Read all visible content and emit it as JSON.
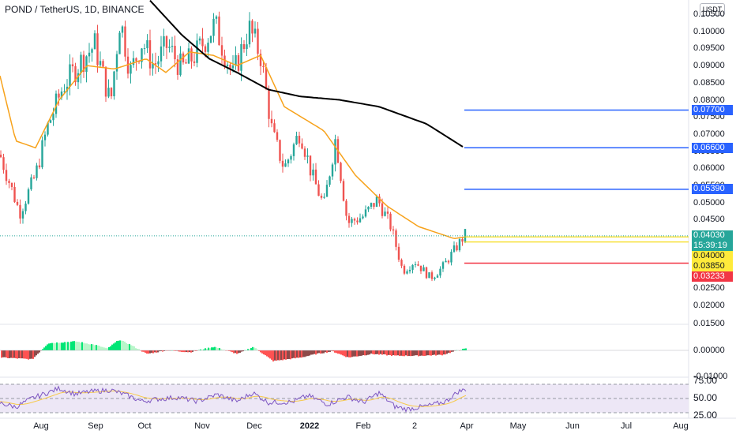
{
  "header": {
    "symbol_line": "POND / TetherUS, 1D, BINANCE"
  },
  "currency_badge": "USDT",
  "price_axis": {
    "ticks": [
      "0.10500",
      "0.10000",
      "0.09500",
      "0.09000",
      "0.08500",
      "0.08000",
      "0.07500",
      "0.07000",
      "0.06500",
      "0.06000",
      "0.05500",
      "0.05000",
      "0.04500",
      "0.02500",
      "0.02000"
    ],
    "tick_values": [
      0.105,
      0.1,
      0.095,
      0.09,
      0.085,
      0.08,
      0.075,
      0.07,
      0.065,
      0.06,
      0.055,
      0.05,
      0.045,
      0.025,
      0.02
    ]
  },
  "price_tags": {
    "level_1": {
      "label": "0.07700",
      "value": 0.077,
      "color": "#2962ff"
    },
    "level_2": {
      "label": "0.06600",
      "value": 0.066,
      "color": "#2962ff"
    },
    "level_3": {
      "label": "0.05390",
      "value": 0.0539,
      "color": "#2962ff"
    },
    "last_price": {
      "label": "0.04030",
      "value": 0.0403,
      "color": "#26a69a"
    },
    "countdown": {
      "label": "15:39:19"
    },
    "yellow_1": {
      "label": "0.04000",
      "value": 0.04,
      "color": "#ffeb3b"
    },
    "yellow_2": {
      "label": "0.03850",
      "value": 0.0385,
      "color": "#ffeb3b"
    },
    "stop": {
      "label": "0.03233",
      "value": 0.03233,
      "color": "#f23645"
    }
  },
  "oscillator_axis": {
    "ticks": [
      "0.01500",
      "0.00000",
      "-0.01000"
    ]
  },
  "rsi_axis": {
    "ticks": [
      "75.00",
      "50.00",
      "25.00"
    ]
  },
  "time_axis": {
    "labels": [
      {
        "text": "Aug",
        "bold": false
      },
      {
        "text": "Sep",
        "bold": false
      },
      {
        "text": "Oct",
        "bold": false
      },
      {
        "text": "Nov",
        "bold": false
      },
      {
        "text": "Dec",
        "bold": false
      },
      {
        "text": "2022",
        "bold": true
      },
      {
        "text": "Feb",
        "bold": false
      },
      {
        "text": "2",
        "bold": false
      },
      {
        "text": "Apr",
        "bold": false
      },
      {
        "text": "May",
        "bold": false
      },
      {
        "text": "Jun",
        "bold": false
      },
      {
        "text": "Jul",
        "bold": false
      },
      {
        "text": "Aug",
        "bold": false
      }
    ]
  },
  "colors": {
    "up": "#26a69a",
    "down": "#ef5350",
    "ma_fast": "#f7a21b",
    "ma_slow": "#000000",
    "rsi": "#7e57c2",
    "rsi_band": "#ede7f6",
    "osc_up": "#00e676",
    "osc_down": "#ff5252"
  },
  "chart_data": {
    "type": "candlestick",
    "panels": [
      "price",
      "oscillator",
      "rsi"
    ],
    "series": [
      {
        "name": "POND / TetherUS",
        "kind": "candles"
      },
      {
        "name": "",
        "kind": "line",
        "note_color": "#f7a21b"
      },
      {
        "name": "",
        "kind": "line",
        "note_color": "#000000"
      }
    ],
    "ylim_price": [
      0.015,
      0.107
    ],
    "ylim_oscillator": [
      -0.01,
      0.015
    ],
    "ylim_rsi": [
      25,
      75
    ],
    "x_start_label": "Aug",
    "x_end_label": "Aug",
    "horizontal_levels": [
      0.077,
      0.066,
      0.0539,
      0.0403,
      0.04,
      0.0385,
      0.03233
    ],
    "fast_ma_keypoints": [
      [
        0,
        0.087
      ],
      [
        20,
        0.068
      ],
      [
        45,
        0.066
      ],
      [
        75,
        0.08
      ],
      [
        110,
        0.09
      ],
      [
        145,
        0.089
      ],
      [
        185,
        0.092
      ],
      [
        210,
        0.088
      ],
      [
        240,
        0.094
      ],
      [
        270,
        0.093
      ],
      [
        300,
        0.09
      ],
      [
        330,
        0.093
      ],
      [
        360,
        0.078
      ],
      [
        410,
        0.071
      ],
      [
        450,
        0.058
      ],
      [
        490,
        0.049
      ],
      [
        530,
        0.043
      ],
      [
        575,
        0.0395
      ],
      [
        590,
        0.04
      ]
    ],
    "slow_ma_keypoints": [
      [
        190,
        0.109
      ],
      [
        230,
        0.099
      ],
      [
        265,
        0.092
      ],
      [
        300,
        0.088
      ],
      [
        340,
        0.083
      ],
      [
        380,
        0.081
      ],
      [
        430,
        0.08
      ],
      [
        480,
        0.078
      ],
      [
        540,
        0.073
      ],
      [
        588,
        0.066
      ]
    ],
    "price_path_keypoints": [
      [
        0,
        0.064
      ],
      [
        25,
        0.047
      ],
      [
        45,
        0.058
      ],
      [
        60,
        0.072
      ],
      [
        80,
        0.084
      ],
      [
        105,
        0.092
      ],
      [
        120,
        0.096
      ],
      [
        140,
        0.079
      ],
      [
        152,
        0.104
      ],
      [
        165,
        0.088
      ],
      [
        180,
        0.097
      ],
      [
        195,
        0.09
      ],
      [
        212,
        0.096
      ],
      [
        230,
        0.089
      ],
      [
        250,
        0.094
      ],
      [
        272,
        0.102
      ],
      [
        295,
        0.087
      ],
      [
        315,
        0.101
      ],
      [
        330,
        0.093
      ],
      [
        345,
        0.07
      ],
      [
        360,
        0.06
      ],
      [
        380,
        0.071
      ],
      [
        395,
        0.058
      ],
      [
        410,
        0.049
      ],
      [
        425,
        0.069
      ],
      [
        440,
        0.044
      ],
      [
        460,
        0.046
      ],
      [
        478,
        0.051
      ],
      [
        495,
        0.043
      ],
      [
        510,
        0.03
      ],
      [
        525,
        0.033
      ],
      [
        545,
        0.028
      ],
      [
        560,
        0.031
      ],
      [
        578,
        0.037
      ],
      [
        590,
        0.041
      ]
    ],
    "oscillator_keypoints": [
      [
        0,
        -0.004
      ],
      [
        40,
        -0.005
      ],
      [
        60,
        0.004
      ],
      [
        95,
        0.005
      ],
      [
        120,
        0.003
      ],
      [
        135,
        0.001
      ],
      [
        150,
        0.006
      ],
      [
        165,
        0.003
      ],
      [
        185,
        -0.002
      ],
      [
        210,
        0.0
      ],
      [
        240,
        -0.001
      ],
      [
        270,
        0.002
      ],
      [
        300,
        -0.002
      ],
      [
        320,
        0.002
      ],
      [
        345,
        -0.006
      ],
      [
        380,
        -0.004
      ],
      [
        400,
        -0.002
      ],
      [
        420,
        -0.0005
      ],
      [
        440,
        -0.004
      ],
      [
        470,
        -0.002
      ],
      [
        500,
        -0.003
      ],
      [
        530,
        -0.003
      ],
      [
        560,
        -0.0025
      ],
      [
        578,
        0.0
      ],
      [
        590,
        0.001
      ]
    ],
    "rsi_keypoints": [
      [
        0,
        42
      ],
      [
        20,
        35
      ],
      [
        40,
        50
      ],
      [
        60,
        60
      ],
      [
        75,
        68
      ],
      [
        95,
        58
      ],
      [
        115,
        62
      ],
      [
        140,
        65
      ],
      [
        160,
        56
      ],
      [
        180,
        45
      ],
      [
        200,
        49
      ],
      [
        225,
        52
      ],
      [
        250,
        45
      ],
      [
        275,
        57
      ],
      [
        300,
        45
      ],
      [
        320,
        60
      ],
      [
        340,
        43
      ],
      [
        370,
        44
      ],
      [
        390,
        55
      ],
      [
        415,
        40
      ],
      [
        440,
        53
      ],
      [
        460,
        43
      ],
      [
        480,
        60
      ],
      [
        500,
        36
      ],
      [
        515,
        31
      ],
      [
        545,
        38
      ],
      [
        565,
        45
      ],
      [
        580,
        62
      ],
      [
        590,
        66
      ]
    ]
  }
}
